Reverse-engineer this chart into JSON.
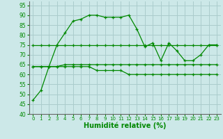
{
  "xlabel": "Humidité relative (%)",
  "background_color": "#cce8e8",
  "grid_color": "#aacccc",
  "line_color": "#008800",
  "xlim": [
    -0.5,
    23.5
  ],
  "ylim": [
    40,
    97
  ],
  "yticks": [
    40,
    45,
    50,
    55,
    60,
    65,
    70,
    75,
    80,
    85,
    90,
    95
  ],
  "xticks": [
    0,
    1,
    2,
    3,
    4,
    5,
    6,
    7,
    8,
    9,
    10,
    11,
    12,
    13,
    14,
    15,
    16,
    17,
    18,
    19,
    20,
    21,
    22,
    23
  ],
  "line1": [
    47,
    52,
    64,
    75,
    81,
    87,
    88,
    90,
    90,
    89,
    89,
    89,
    90,
    83,
    74,
    76,
    67,
    76,
    72,
    67,
    67,
    70,
    75,
    75
  ],
  "line2": [
    75,
    75,
    75,
    75,
    75,
    75,
    75,
    75,
    75,
    75,
    75,
    75,
    75,
    75,
    75,
    75,
    75,
    75,
    75,
    75,
    75,
    75,
    75,
    75
  ],
  "line3": [
    64,
    64,
    64,
    64,
    65,
    65,
    65,
    65,
    65,
    65,
    65,
    65,
    65,
    65,
    65,
    65,
    65,
    65,
    65,
    65,
    65,
    65,
    65,
    65
  ],
  "line4": [
    64,
    64,
    64,
    64,
    64,
    64,
    64,
    64,
    62,
    62,
    62,
    62,
    60,
    60,
    60,
    60,
    60,
    60,
    60,
    60,
    60,
    60,
    60,
    60
  ]
}
